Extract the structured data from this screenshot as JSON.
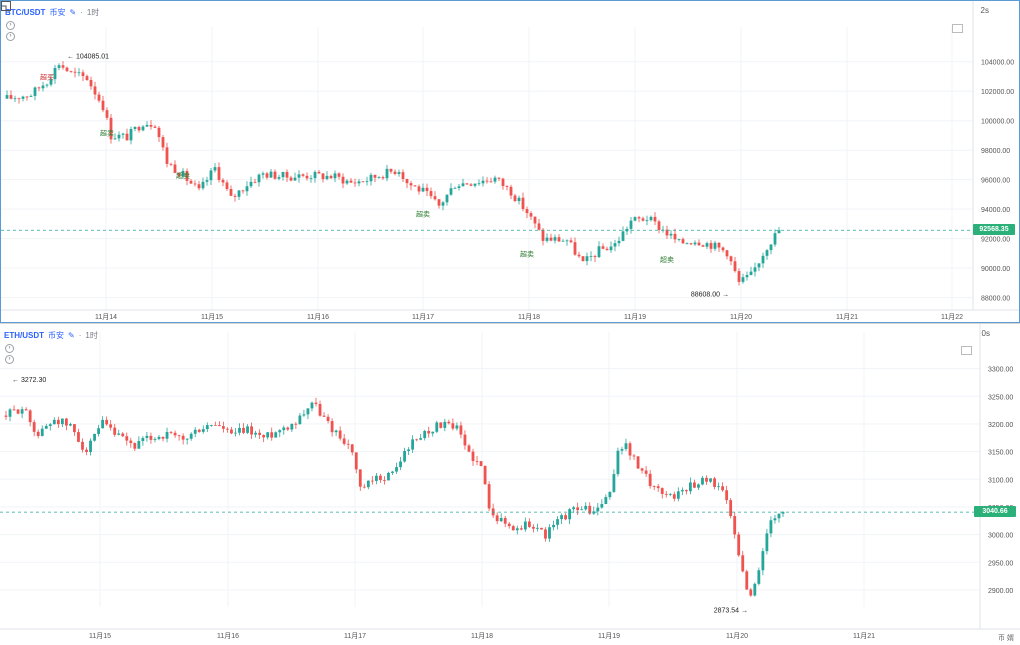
{
  "chart_data": [
    {
      "type": "candlestick",
      "symbol": "BTC/USDT",
      "market": "币安",
      "interval": "1时",
      "timer": "2s",
      "ylim": [
        87500,
        105000
      ],
      "yticks": [
        88000,
        90000,
        92000,
        94000,
        96000,
        98000,
        100000,
        102000,
        104000
      ],
      "ytick_labels": [
        "88000.00",
        "90000.00",
        "92000.00",
        "94000.00",
        "96000.00",
        "98000.00",
        "100000.00",
        "102000.00",
        "104000.00"
      ],
      "x_labels": [
        "11月14",
        "11月15",
        "11月16",
        "11月17",
        "11月18",
        "11月19",
        "11月20",
        "11月21",
        "11月22"
      ],
      "high_marker": {
        "label": "104085.01",
        "value": 104085.01
      },
      "low_marker": {
        "label": "88608.00",
        "value": 88608.0
      },
      "current_price": {
        "label": "92568.35",
        "value": 92568.35
      },
      "signals": [
        {
          "text": "超买",
          "index": 10,
          "value": 102800
        },
        {
          "text": "超卖",
          "index": 25,
          "value": 99000
        },
        {
          "text": "超卖",
          "index": 44,
          "value": 96100
        },
        {
          "text": "超卖",
          "index": 104,
          "value": 93500
        },
        {
          "text": "超卖",
          "index": 130,
          "value": 90800
        },
        {
          "text": "超卖",
          "index": 165,
          "value": 90400
        }
      ],
      "anchors": [
        [
          0,
          101500
        ],
        [
          6,
          101800
        ],
        [
          10,
          102700
        ],
        [
          13,
          103900
        ],
        [
          16,
          103200
        ],
        [
          20,
          102900
        ],
        [
          24,
          101000
        ],
        [
          26,
          99000
        ],
        [
          30,
          98900
        ],
        [
          34,
          99900
        ],
        [
          37,
          99800
        ],
        [
          40,
          97200
        ],
        [
          44,
          96300
        ],
        [
          48,
          95200
        ],
        [
          52,
          96800
        ],
        [
          56,
          94700
        ],
        [
          60,
          95700
        ],
        [
          64,
          96400
        ],
        [
          70,
          96200
        ],
        [
          76,
          96300
        ],
        [
          82,
          96200
        ],
        [
          86,
          95800
        ],
        [
          90,
          96000
        ],
        [
          94,
          96400
        ],
        [
          98,
          96700
        ],
        [
          100,
          95800
        ],
        [
          104,
          95200
        ],
        [
          108,
          94200
        ],
        [
          112,
          95700
        ],
        [
          118,
          95900
        ],
        [
          122,
          96100
        ],
        [
          126,
          95200
        ],
        [
          130,
          93800
        ],
        [
          134,
          92000
        ],
        [
          140,
          91900
        ],
        [
          144,
          90300
        ],
        [
          148,
          91200
        ],
        [
          152,
          91600
        ],
        [
          156,
          93200
        ],
        [
          160,
          93400
        ],
        [
          164,
          92600
        ],
        [
          168,
          91700
        ],
        [
          172,
          91900
        ],
        [
          176,
          91600
        ],
        [
          180,
          91100
        ],
        [
          183,
          89000
        ],
        [
          186,
          89500
        ],
        [
          190,
          91500
        ],
        [
          193,
          92568
        ]
      ],
      "total_candles": 194
    },
    {
      "type": "candlestick",
      "symbol": "ETH/USDT",
      "market": "币安",
      "interval": "1时",
      "timer": "0s",
      "ylim": [
        2880,
        3330
      ],
      "yticks": [
        2900,
        2950,
        3000,
        3050,
        3100,
        3150,
        3200,
        3250,
        3300
      ],
      "ytick_labels": [
        "2900.00",
        "2950.00",
        "3000.00",
        "3050.00",
        "3100.00",
        "3150.00",
        "3200.00",
        "3250.00",
        "3300.00"
      ],
      "x_labels": [
        "11月15",
        "11月16",
        "11月17",
        "11月18",
        "11月19",
        "11月20",
        "11月21"
      ],
      "high_marker": {
        "label": "3272.30",
        "value": 3272.3
      },
      "low_marker": {
        "label": "2873.54",
        "value": 2873.54
      },
      "current_price": {
        "label": "3040.66",
        "value": 3040.66
      },
      "anchors": [
        [
          0,
          3215
        ],
        [
          4,
          3230
        ],
        [
          8,
          3180
        ],
        [
          12,
          3210
        ],
        [
          16,
          3195
        ],
        [
          20,
          3150
        ],
        [
          24,
          3200
        ],
        [
          28,
          3175
        ],
        [
          32,
          3160
        ],
        [
          36,
          3175
        ],
        [
          40,
          3180
        ],
        [
          44,
          3170
        ],
        [
          48,
          3190
        ],
        [
          52,
          3200
        ],
        [
          56,
          3180
        ],
        [
          60,
          3190
        ],
        [
          64,
          3175
        ],
        [
          68,
          3190
        ],
        [
          72,
          3205
        ],
        [
          76,
          3240
        ],
        [
          80,
          3200
        ],
        [
          84,
          3170
        ],
        [
          86,
          3150
        ],
        [
          88,
          3080
        ],
        [
          92,
          3100
        ],
        [
          96,
          3110
        ],
        [
          100,
          3160
        ],
        [
          104,
          3185
        ],
        [
          108,
          3200
        ],
        [
          112,
          3190
        ],
        [
          114,
          3160
        ],
        [
          118,
          3120
        ],
        [
          120,
          3055
        ],
        [
          122,
          3030
        ],
        [
          126,
          3010
        ],
        [
          130,
          3020
        ],
        [
          134,
          3000
        ],
        [
          138,
          3030
        ],
        [
          142,
          3050
        ],
        [
          146,
          3040
        ],
        [
          150,
          3070
        ],
        [
          152,
          3155
        ],
        [
          154,
          3160
        ],
        [
          158,
          3110
        ],
        [
          162,
          3080
        ],
        [
          166,
          3070
        ],
        [
          170,
          3090
        ],
        [
          174,
          3100
        ],
        [
          178,
          3085
        ],
        [
          181,
          3000
        ],
        [
          183,
          2930
        ],
        [
          185,
          2885
        ],
        [
          188,
          2970
        ],
        [
          190,
          3020
        ],
        [
          193,
          3040
        ]
      ],
      "total_candles": 194
    }
  ],
  "watermark": "币 婿"
}
